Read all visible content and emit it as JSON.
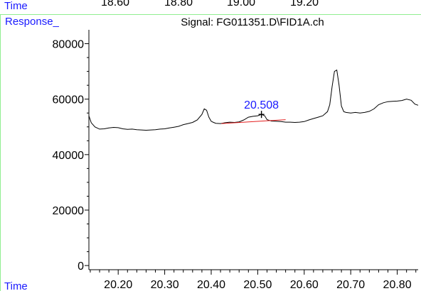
{
  "top_strip": {
    "label": "Time",
    "ticks": [
      "18.60",
      "18.80",
      "19.00",
      "19.20"
    ]
  },
  "chart_data": {
    "type": "line",
    "title": "Signal: FG011351.D\\FID1A.ch",
    "ylabel": "Response_",
    "xlabel": "Time",
    "xlim": [
      20.137,
      20.845
    ],
    "ylim": [
      -1500,
      85000
    ],
    "x_ticks": [
      20.2,
      20.3,
      20.4,
      20.5,
      20.6,
      20.7,
      20.8
    ],
    "x_tick_labels": [
      "20.20",
      "20.30",
      "20.40",
      "20.50",
      "20.60",
      "20.70",
      "20.80"
    ],
    "y_ticks": [
      0,
      20000,
      40000,
      60000,
      80000
    ],
    "y_tick_labels": [
      "0",
      "20000",
      "40000",
      "60000",
      "80000"
    ],
    "series": [
      {
        "color": "#000000",
        "x": [
          20.137,
          20.142,
          20.15,
          20.16,
          20.17,
          20.18,
          20.19,
          20.2,
          20.21,
          20.22,
          20.23,
          20.24,
          20.25,
          20.26,
          20.27,
          20.28,
          20.29,
          20.3,
          20.31,
          20.32,
          20.33,
          20.34,
          20.35,
          20.36,
          20.37,
          20.38,
          20.385,
          20.39,
          20.395,
          20.4,
          20.405,
          20.41,
          20.42,
          20.43,
          20.44,
          20.45,
          20.46,
          20.47,
          20.48,
          20.49,
          20.5,
          20.508,
          20.515,
          20.52,
          20.53,
          20.54,
          20.55,
          20.56,
          20.57,
          20.58,
          20.59,
          20.6,
          20.61,
          20.62,
          20.63,
          20.64,
          20.65,
          20.655,
          20.66,
          20.665,
          20.67,
          20.675,
          20.68,
          20.685,
          20.69,
          20.7,
          20.71,
          20.72,
          20.73,
          20.74,
          20.75,
          20.76,
          20.77,
          20.78,
          20.79,
          20.8,
          20.81,
          20.82,
          20.83,
          20.838,
          20.845
        ],
        "y": [
          54000,
          51500,
          50000,
          49200,
          49300,
          49600,
          49800,
          49700,
          49300,
          49100,
          49200,
          49000,
          48900,
          48800,
          48900,
          49000,
          49200,
          49300,
          49600,
          49900,
          50200,
          50800,
          51200,
          51600,
          52500,
          54500,
          56500,
          56000,
          53500,
          52000,
          51600,
          51300,
          51200,
          51500,
          51700,
          51600,
          51800,
          52500,
          53500,
          53800,
          54000,
          54500,
          54000,
          52600,
          52100,
          52000,
          51900,
          51700,
          51700,
          51600,
          51700,
          51900,
          52500,
          53000,
          53500,
          54000,
          55500,
          58000,
          64500,
          70000,
          70500,
          65000,
          57500,
          55500,
          55200,
          55000,
          55200,
          55000,
          55200,
          55600,
          56500,
          58000,
          58700,
          59100,
          59200,
          59300,
          59500,
          60000,
          59600,
          58200,
          57800
        ]
      }
    ],
    "peaks": [
      {
        "rt": 20.508,
        "label": "20.508",
        "baseline": {
          "x": [
            20.422,
            20.56
          ],
          "y": [
            51200,
            52600
          ]
        }
      }
    ]
  }
}
